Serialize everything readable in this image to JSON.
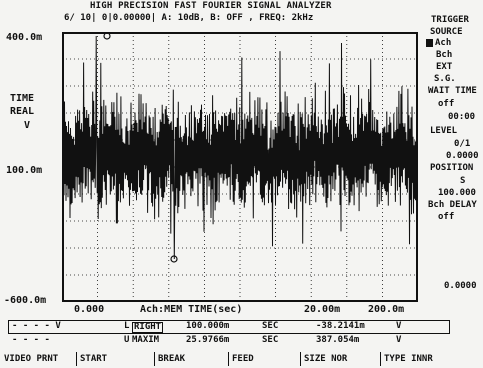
{
  "header": {
    "title": "HIGH PRECISION FAST FOURIER SIGNAL ANALYZER",
    "info": "6/    10|    0|0.00000| A: 10dB, B: OFF , FREQ:   2kHz",
    "trigger_label": "TRIGGER"
  },
  "y_axis": {
    "top": "400.0m",
    "mid": "100.0m",
    "bottom": "-600.0m",
    "label_line1": "TIME",
    "label_line2": "REAL",
    "label_line3": "V"
  },
  "x_axis": {
    "left": "0.000",
    "center": "Ach:MEM    TIME(sec)",
    "right_mid": "20.00m",
    "right": "200.0m"
  },
  "right_panel": {
    "source_label": "SOURCE",
    "ach": "Ach",
    "bch": "Bch",
    "ext": "EXT",
    "sg": "S.G.",
    "wait_time": "WAIT TIME",
    "off1": "off",
    "time_val": "00:00",
    "level_label": "LEVEL",
    "level_frac": "0/1",
    "level_val": "0.0000",
    "position_label": "POSITION",
    "pos_frac": "S",
    "pos_val": "100.000",
    "bch_delay": "Bch DELAY",
    "off2": "off",
    "delay_val": "0.0000"
  },
  "readout": {
    "row1_left": "- - - -   V",
    "row1_mark": "L",
    "row1_label": "RIGHT",
    "row1_value": "100.000m",
    "row1_unit": "SEC",
    "row1_val2": "-38.2141m",
    "row1_unit2": "V",
    "row2_left": "- - - -",
    "row2_mark": "U",
    "row2_label": "MAXIM",
    "row2_value": "25.9766m",
    "row2_unit": "SEC",
    "row2_val2": "387.054m",
    "row2_unit2": "V"
  },
  "softkeys": [
    "VIDEO PRNT",
    "START",
    "BREAK",
    "FEED",
    "SIZE  NOR",
    "TYPE INNR"
  ]
}
